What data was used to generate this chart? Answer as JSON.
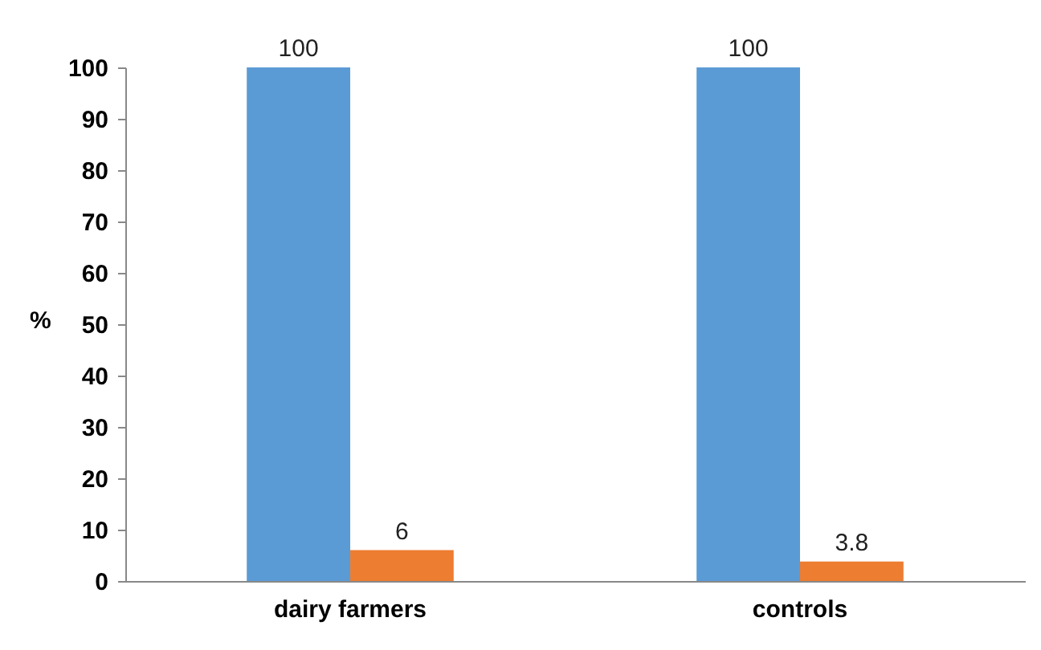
{
  "chart_data": {
    "type": "bar",
    "ylabel": "%",
    "categories": [
      "dairy farmers",
      "controls"
    ],
    "series": [
      {
        "color": "#5b9bd5",
        "values": [
          100,
          100
        ]
      },
      {
        "color": "#ed7d31",
        "values": [
          6,
          3.8
        ]
      }
    ],
    "ylim": [
      0,
      100
    ],
    "yticks": [
      0,
      10,
      20,
      30,
      40,
      50,
      60,
      70,
      80,
      90,
      100
    ],
    "data_labels": true,
    "grid": false,
    "legend": false
  }
}
